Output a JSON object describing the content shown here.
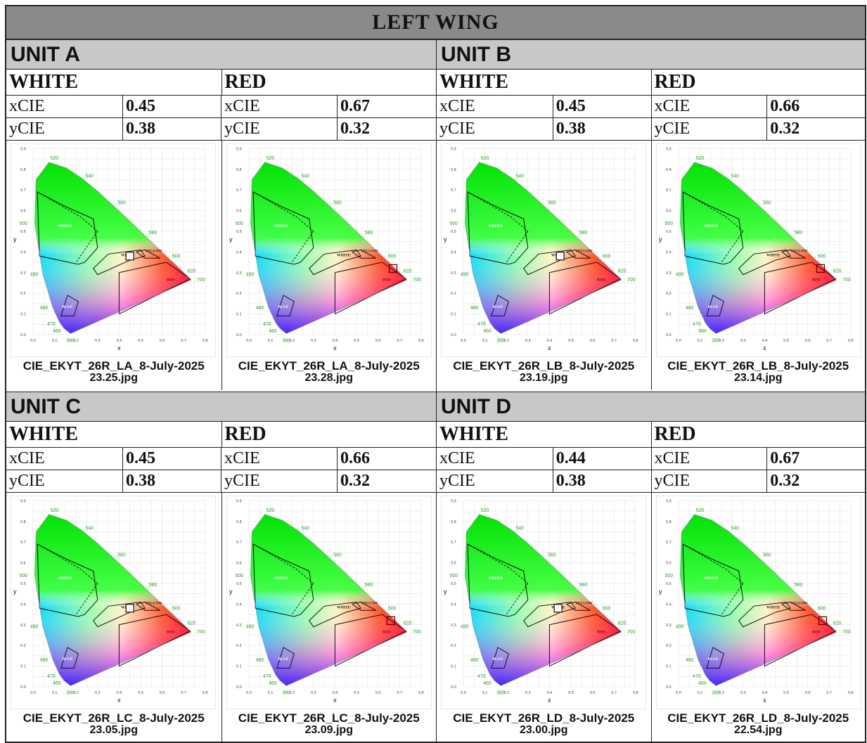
{
  "title": "LEFT WING",
  "col_labels": {
    "white": "WHITE",
    "red": "RED",
    "x": "xCIE",
    "y": "yCIE"
  },
  "chart_labels": {
    "y_axis": "y",
    "x_axis": "x",
    "wavelengths": [
      "520",
      "540",
      "560",
      "580",
      "600",
      "620",
      "700",
      "500",
      "490",
      "480",
      "470",
      "460",
      "380"
    ],
    "regions": [
      "GREEN",
      "WHITE",
      "YELLOW",
      "RED",
      "BLUE"
    ],
    "x_ticks": [
      "0.0",
      "0.1",
      "0.2",
      "0.3",
      "0.4",
      "0.5",
      "0.6",
      "0.7",
      "0.8"
    ],
    "y_ticks": [
      "0.0",
      "0.1",
      "0.2",
      "0.3",
      "0.4",
      "0.5",
      "0.6",
      "0.7",
      "0.8",
      "0.9"
    ]
  },
  "units": [
    {
      "name": "UNIT A",
      "white": {
        "x": "0.45",
        "y": "0.38",
        "cap1": "CIE_EKYT_26R_LA_8-July-2025",
        "cap2": "23.25.jpg"
      },
      "red": {
        "x": "0.67",
        "y": "0.32",
        "cap1": "CIE_EKYT_26R_LA_8-July-2025",
        "cap2": "23.28.jpg"
      }
    },
    {
      "name": "UNIT B",
      "white": {
        "x": "0.45",
        "y": "0.38",
        "cap1": "CIE_EKYT_26R_LB_8-July-2025",
        "cap2": "23.19.jpg"
      },
      "red": {
        "x": "0.66",
        "y": "0.32",
        "cap1": "CIE_EKYT_26R_LB_8-July-2025",
        "cap2": "23.14.jpg"
      }
    },
    {
      "name": "UNIT C",
      "white": {
        "x": "0.45",
        "y": "0.38",
        "cap1": "CIE_EKYT_26R_LC_8-July-2025",
        "cap2": "23.05.jpg"
      },
      "red": {
        "x": "0.66",
        "y": "0.32",
        "cap1": "CIE_EKYT_26R_LC_8-July-2025",
        "cap2": "23.09.jpg"
      }
    },
    {
      "name": "UNIT D",
      "white": {
        "x": "0.44",
        "y": "0.38",
        "cap1": "CIE_EKYT_26R_LD_8-July-2025",
        "cap2": "23.00.jpg"
      },
      "red": {
        "x": "0.67",
        "y": "0.32",
        "cap1": "CIE_EKYT_26R_LD_8-July-2025",
        "cap2": "22.54.jpg"
      }
    }
  ]
}
